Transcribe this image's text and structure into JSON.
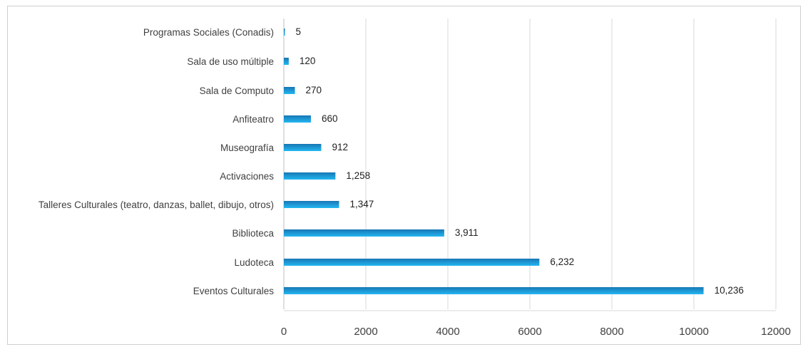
{
  "chart_data": {
    "type": "bar",
    "orientation": "horizontal",
    "title": "",
    "xlabel": "",
    "ylabel": "",
    "categories": [
      "Programas Sociales (Conadis)",
      "Sala de uso múltiple",
      "Sala de Computo",
      "Anfiteatro",
      "Museografía",
      "Activaciones",
      "Talleres Culturales (teatro, danzas, ballet, dibujo, otros)",
      "Biblioteca",
      "Ludoteca",
      "Eventos Culturales"
    ],
    "values": [
      5,
      120,
      270,
      660,
      912,
      1258,
      1347,
      3911,
      6232,
      10236
    ],
    "data_labels": [
      "5",
      "120",
      "270",
      "660",
      "912",
      "1,258",
      "1,347",
      "3,911",
      "6,232",
      "10,236"
    ],
    "xlim": [
      0,
      12000
    ],
    "xticks": [
      0,
      2000,
      4000,
      6000,
      8000,
      10000,
      12000
    ],
    "xtick_labels": [
      "0",
      "2000",
      "4000",
      "6000",
      "8000",
      "10000",
      "12000"
    ],
    "grid": "vertical major gridlines",
    "legend": "none",
    "colors": {
      "bar_dark": "#1777b4",
      "bar_light": "#23b7f2",
      "grid": "#d9d9d9",
      "axis": "#bfbfbf",
      "text": "#3f3f3f"
    }
  }
}
